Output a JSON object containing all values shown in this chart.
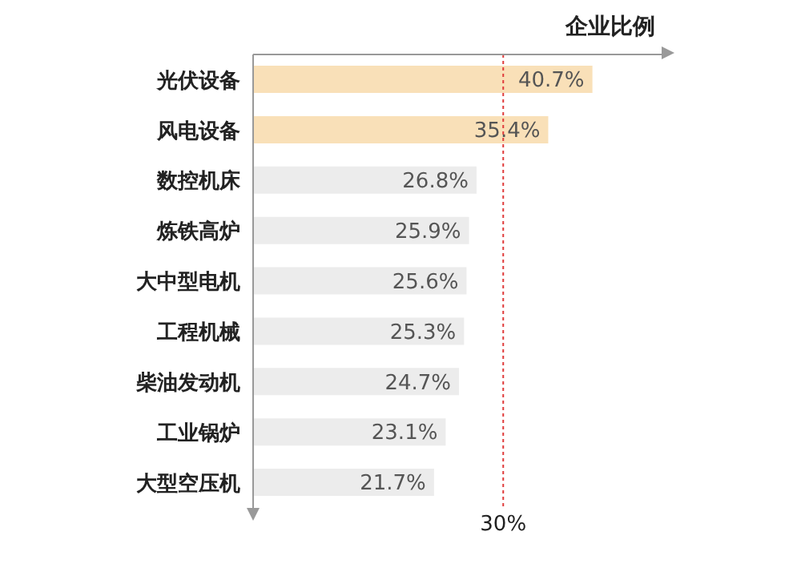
{
  "chart_data": {
    "type": "bar",
    "orientation": "horizontal",
    "xlabel": "企业比例",
    "categories": [
      "光伏设备",
      "风电设备",
      "数控机床",
      "炼铁高炉",
      "大中型电机",
      "工程机械",
      "柴油发动机",
      "工业锅炉",
      "大型空压机"
    ],
    "values": [
      40.7,
      35.4,
      26.8,
      25.9,
      25.6,
      25.3,
      24.7,
      23.1,
      21.7
    ],
    "value_labels": [
      "40.7%",
      "35.4%",
      "26.8%",
      "25.9%",
      "25.6%",
      "25.3%",
      "24.7%",
      "23.1%",
      "21.7%"
    ],
    "colors": [
      "#f9e0b8",
      "#f9e0b8",
      "#ececec",
      "#ececec",
      "#ececec",
      "#ececec",
      "#ececec",
      "#ececec",
      "#ececec"
    ],
    "xlim": [
      0,
      49
    ],
    "ref_lines": [
      {
        "axis": "x",
        "value": 30,
        "label": "30%",
        "color": "#e03c3c",
        "line_style": "dotted"
      }
    ],
    "grid": false,
    "legend": false
  }
}
